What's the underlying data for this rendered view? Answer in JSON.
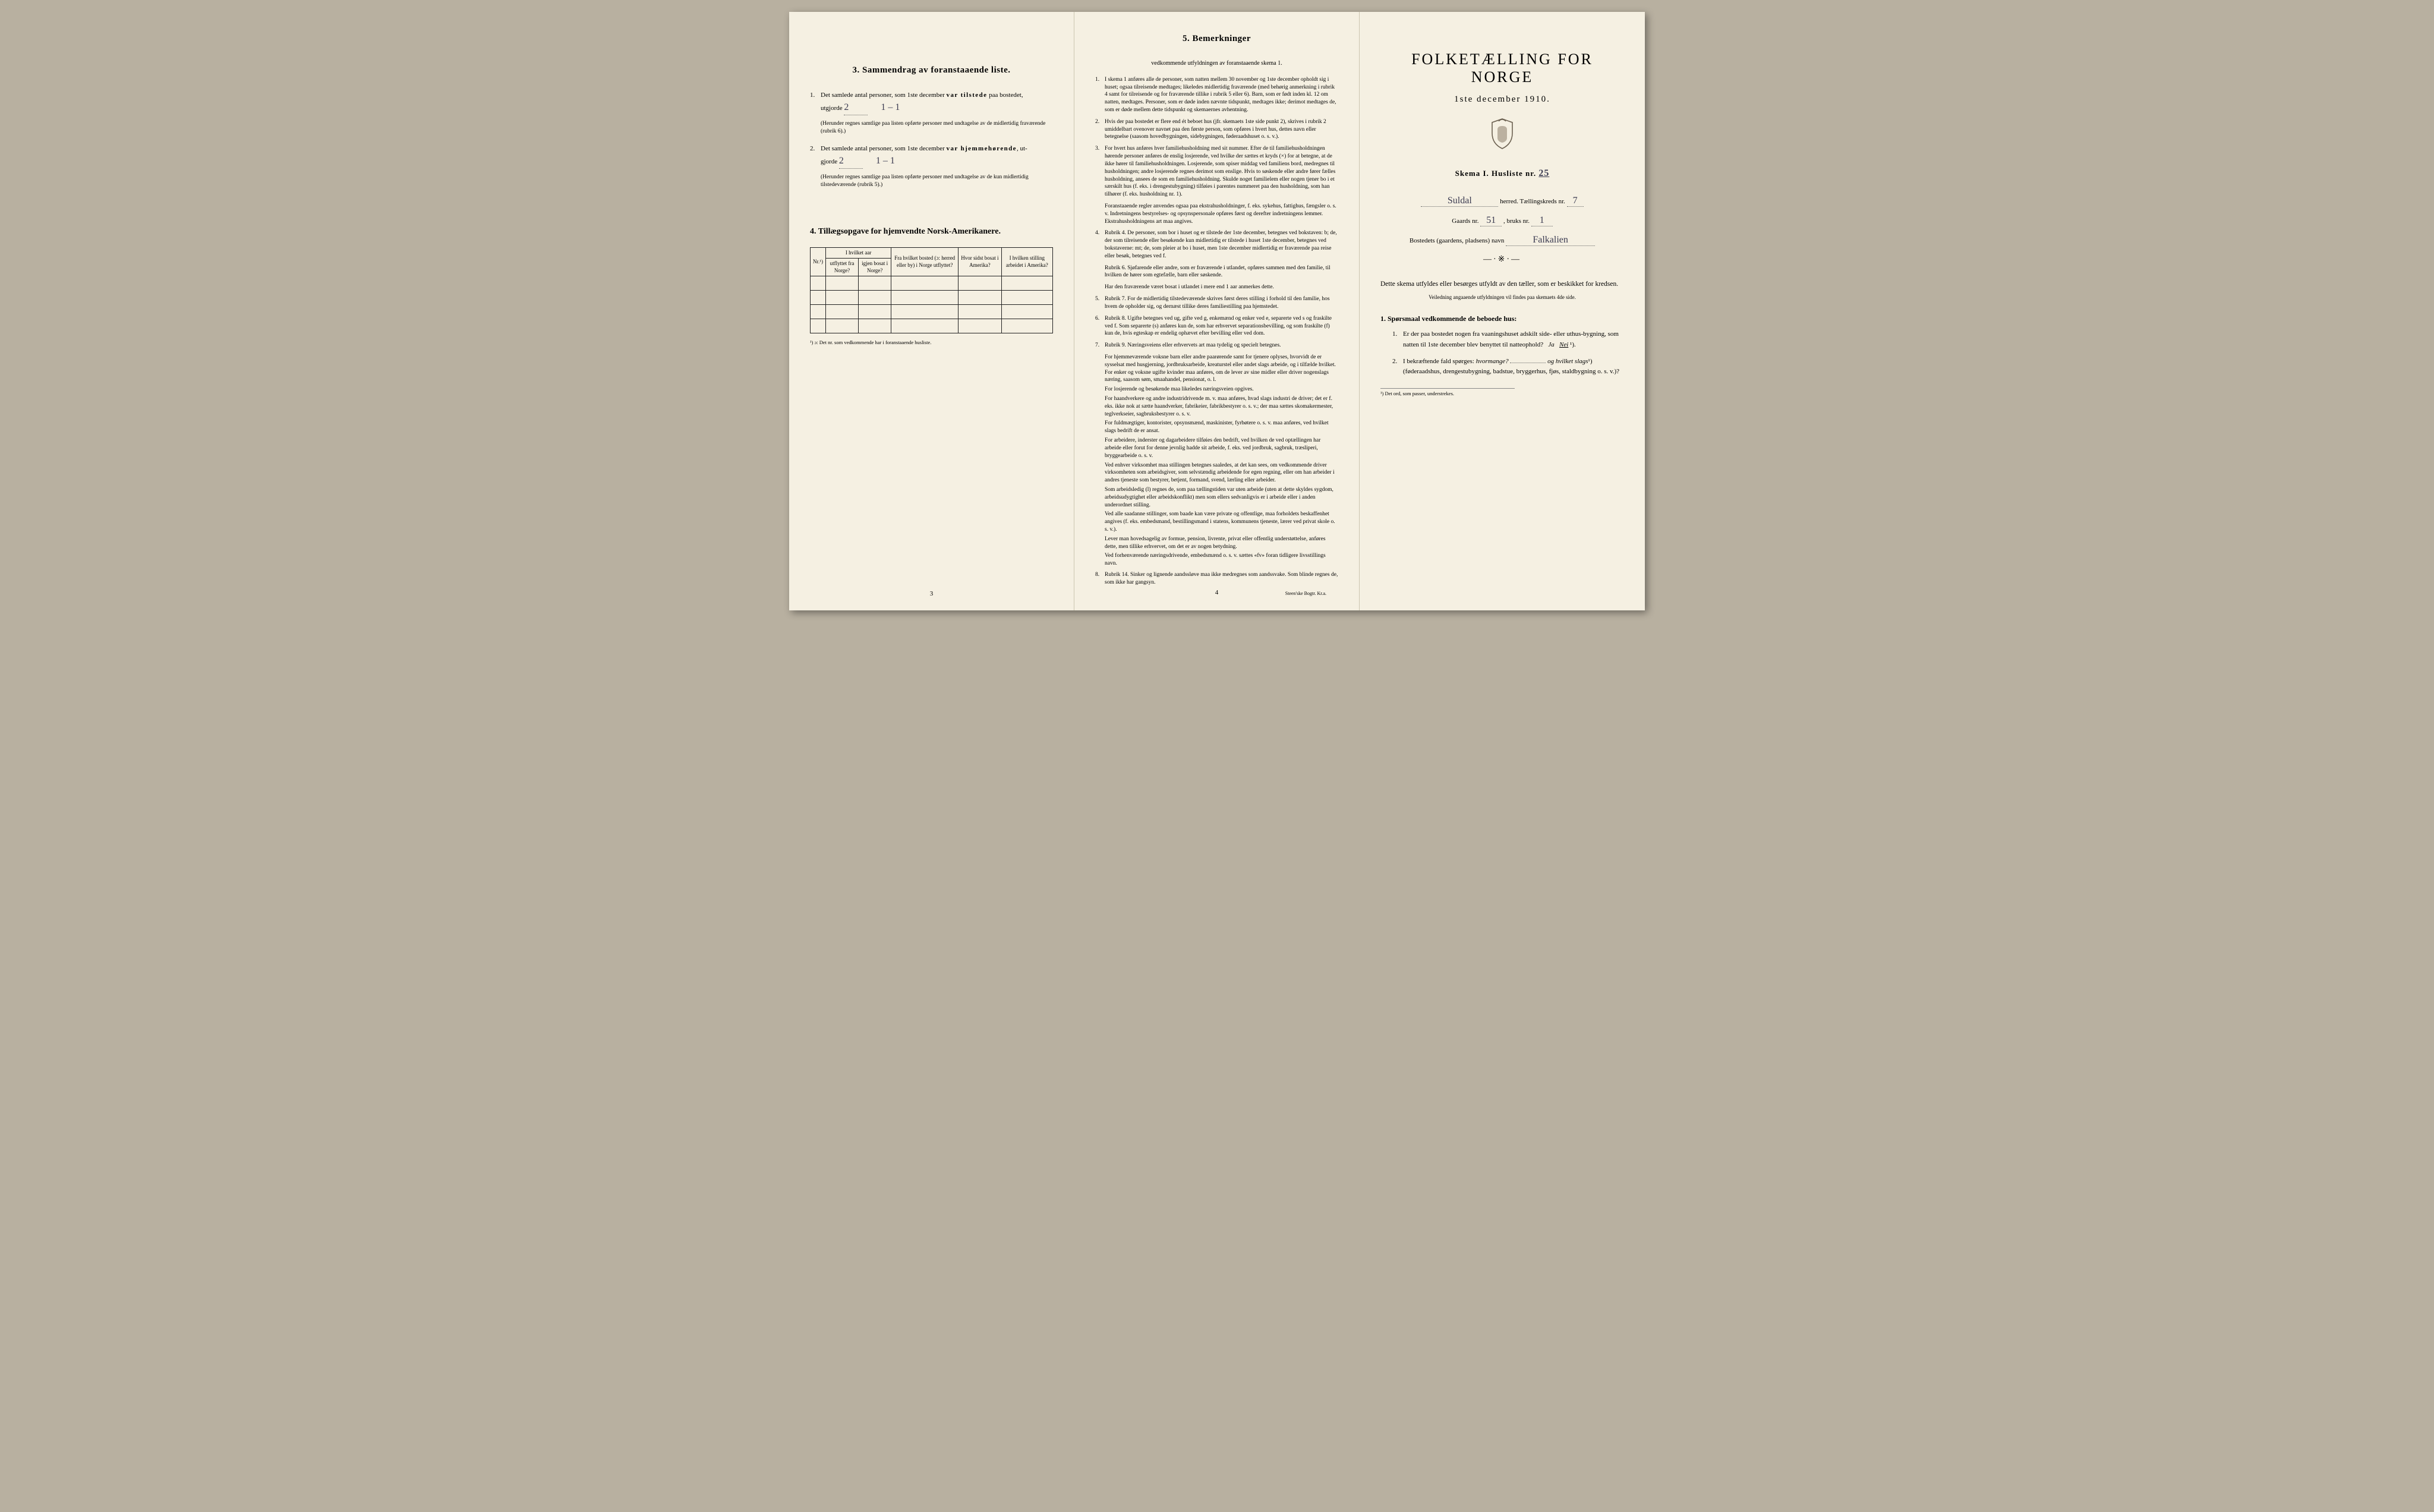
{
  "colors": {
    "paper": "#f5f0e2",
    "ink": "#222222",
    "handwriting": "#3a3a50",
    "background": "#b8b0a0",
    "rule": "#888888"
  },
  "page3": {
    "section3_title": "3.   Sammendrag av foranstaaende liste.",
    "item1_lead": "Det samlede antal personer, som 1ste december",
    "item1_bold": "var tilstede",
    "item1_tail": "paa bostedet,",
    "utgjorde": "utgjorde",
    "val1": "2",
    "val1b": "1 – 1",
    "item1_fine": "(Herunder regnes samtlige paa listen opførte personer med undtagelse av de midlertidig fraværende (rubrik 6).)",
    "item2_lead": "Det samlede antal personer, som 1ste december",
    "item2_bold": "var hjemmehørende",
    "item2_tail": ", ut-",
    "gjorde": "gjorde",
    "val2": "2",
    "val2b": "1 – 1",
    "item2_fine": "(Herunder regnes samtlige paa listen opførte personer med undtagelse av de kun midlertidig tilstedeværende (rubrik 5).)",
    "section4_title": "4.  Tillægsopgave for hjemvendte Norsk-Amerikanere.",
    "table": {
      "head_nr": "Nr.¹)",
      "head_aar": "I hvilket aar",
      "head_aar_sub1": "utflyttet fra Norge?",
      "head_aar_sub2": "igjen bosat i Norge?",
      "head_fra": "Fra hvilket bosted (ɔ: herred eller by) i Norge utflyttet?",
      "head_hvor": "Hvor sidst bosat i Amerika?",
      "head_stilling": "I hvilken stilling arbeidet i Amerika?",
      "blank_rows": 4
    },
    "table_note": "¹) ɔ: Det nr. som vedkommende har i foranstaaende husliste.",
    "pagenum": "3"
  },
  "page4": {
    "title": "5.   Bemerkninger",
    "subtitle": "vedkommende utfyldningen av foranstaaende skema 1.",
    "items": [
      {
        "n": "1.",
        "t": "I skema 1 anføres alle de personer, som natten mellem 30 november og 1ste december opholdt sig i huset; ogsaa tilreisende medtages; likeledes midlertidig fraværende (med behørig anmerkning i rubrik 4 samt for tilreisende og for fraværende tillike i rubrik 5 eller 6). Barn, som er født inden kl. 12 om natten, medtages. Personer, som er døde inden nævnte tidspunkt, medtages ikke; derimot medtages de, som er døde mellem dette tidspunkt og skemaernes avhentning."
      },
      {
        "n": "2.",
        "t": "Hvis der paa bostedet er flere end ét beboet hus (jfr. skemaets 1ste side punkt 2), skrives i rubrik 2 umiddelbart ovenover navnet paa den første person, som opføres i hvert hus, dettes navn eller betegnelse (saasom hovedbygningen, sidebygningen, føderaadshuset o. s. v.)."
      },
      {
        "n": "3.",
        "t": "For hvert hus anføres hver familiehusholdning med sit nummer. Efter de til familiehusholdningen hørende personer anføres de enslig losjerende, ved hvilke der sættes et kryds (×) for at betegne, at de ikke hører til familiehusholdningen. Losjerende, som spiser middag ved familiens bord, medregnes til husholdningen; andre losjerende regnes derimot som enslige. Hvis to søskende eller andre fører fælles husholdning, ansees de som en familiehusholdning. Skulde noget familielem eller nogen tjener bo i et særskilt hus (f. eks. i drengestubygning) tilføies i parentes nummeret paa den husholdning, som han tilhører (f. eks. husholdning nr. 1)."
      },
      {
        "n": "",
        "t": "Foranstaaende regler anvendes ogsaa paa ekstrahusholdninger, f. eks. sykehus, fattighus, fængsler o. s. v. Indretningens bestyrelses- og opsynspersonale opføres først og derefter indretningens lemmer. Ekstrahusholdningens art maa angives."
      },
      {
        "n": "4.",
        "t": "Rubrik 4. De personer, som bor i huset og er tilstede der 1ste december, betegnes ved bokstaven: b; de, der som tilreisende eller besøkende kun midlertidig er tilstede i huset 1ste december, betegnes ved bokstaverne: mt; de, som pleier at bo i huset, men 1ste december midlertidig er fraværende paa reise eller besøk, betegnes ved f."
      },
      {
        "n": "",
        "t": "Rubrik 6. Sjøfarende eller andre, som er fraværende i utlandet, opføres sammen med den familie, til hvilken de hører som egtefælle, barn eller søskende."
      },
      {
        "n": "",
        "t": "Har den fraværende været bosat i utlandet i mere end 1 aar anmerkes dette."
      },
      {
        "n": "5.",
        "t": "Rubrik 7. For de midlertidig tilstedeværende skrives først deres stilling i forhold til den familie, hos hvem de opholder sig, og dernæst tillike deres familiestilling paa hjemstedet."
      },
      {
        "n": "6.",
        "t": "Rubrik 8. Ugifte betegnes ved ug, gifte ved g, enkemænd og enker ved e, separerte ved s og fraskilte ved f. Som separerte (s) anføres kun de, som har erhvervet separationsbevilling, og som fraskilte (f) kun de, hvis egteskap er endelig ophævet efter bevilling eller ved dom."
      },
      {
        "n": "7.",
        "t": "Rubrik 9. Næringsveiens eller erhvervets art maa tydelig og specielt betegnes."
      }
    ],
    "para": [
      "For hjemmeværende voksne barn eller andre paarørende samt for tjenere oplyses, hvorvidt de er sysselsat med husgjerning, jordbruksarbeide, kreaturstel eller andet slags arbeide, og i tilfælde hvilket. For enker og voksne ugifte kvinder maa anføres, om de lever av sine midler eller driver nogenslags næring, saasom søm, smaahandel, pensionat, o. l.",
      "For losjerende og besøkende maa likeledes næringsveien opgives.",
      "For haandverkere og andre industridrivende m. v. maa anføres, hvad slags industri de driver; det er f. eks. ikke nok at sætte haandverker, fabrikeier, fabrikbestyrer o. s. v.; der maa sættes skomakermester, teglverkseier, sagbruksbestyrer o. s. v.",
      "For fuldmægtiger, kontorister, opsynsmænd, maskinister, fyrbøtere o. s. v. maa anføres, ved hvilket slags bedrift de er ansat.",
      "For arbeidere, inderster og dagarbeidere tilføies den bedrift, ved hvilken de ved optællingen har arbeide eller forut for denne jevnlig hadde sit arbeide, f. eks. ved jordbruk, sagbruk, træsliperi, bryggearbeide o. s. v.",
      "Ved enhver virksomhet maa stillingen betegnes saaledes, at det kan sees, om vedkommende driver virksomheten som arbeidsgiver, som selvstændig arbeidende for egen regning, eller om han arbeider i andres tjeneste som bestyrer, betjent, formand, svend, lærling eller arbeider.",
      "Som arbeidsledig (l) regnes de, som paa tællingstiden var uten arbeide (uten at dette skyldes sygdom, arbeidsudygtighet eller arbeidskonflikt) men som ellers sedvanligvis er i arbeide eller i anden underordnet stilling.",
      "Ved alle saadanne stillinger, som baade kan være private og offentlige, maa forholdets beskaffenhet angives (f. eks. embedsmand, bestillingsmand i statens, kommunens tjeneste, lærer ved privat skole o. s. v.).",
      "Lever man hovedsagelig av formue, pension, livrente, privat eller offentlig understøttelse, anføres dette, men tillike erhvervet, om det er av nogen betydning.",
      "Ved forhenværende næringsdrivende, embedsmænd o. s. v. sættes «fv» foran tidligere livsstillings navn."
    ],
    "item8": "Rubrik 14. Sinker og lignende aandssløve maa ikke medregnes som aandssvake. Som blinde regnes de, som ikke har gangsyn.",
    "pagenum": "4",
    "imprint": "Steen'ske Bogtr.  Kr.a."
  },
  "page5": {
    "title": "FOLKETÆLLING FOR NORGE",
    "date": "1ste december 1910.",
    "skema": "Skema I.   Husliste nr.",
    "husliste_nr": "25",
    "herred_val": "Suldal",
    "herred_label": "herred.  Tællingskreds nr.",
    "kreds_nr": "7",
    "gaards_label": "Gaards nr.",
    "gaards_nr": "51",
    "bruks_label": ", bruks nr.",
    "bruks_nr": "1",
    "bosted_label": "Bostedets (gaardens, pladsens) navn",
    "bosted_val": "Falkalien",
    "intro": "Dette skema utfyldes eller besørges utfyldt av den tæller, som er beskikket for kredsen.",
    "intro_fine": "Veiledning angaaende utfyldningen vil findes paa skemaets 4de side.",
    "q_heading": "1. Spørsmaal vedkommende de beboede hus:",
    "q1": "Er der paa bostedet nogen fra vaaningshuset adskilt side- eller uthus-bygning, som natten til 1ste december blev benyttet til natteophold?",
    "q1_ja": "Ja",
    "q1_nei": "Nei",
    "q1_sup": "¹).",
    "q2a": "I bekræftende fald spørges:",
    "q2b": "hvormange?",
    "q2c": "og hvilket slags",
    "q2d": "(føderaadshus, drengestubygning, badstue, bryggerhus, fjøs, staldbygning o. s. v.)?",
    "footnote": "¹) Det ord, som passer, understrekes."
  }
}
